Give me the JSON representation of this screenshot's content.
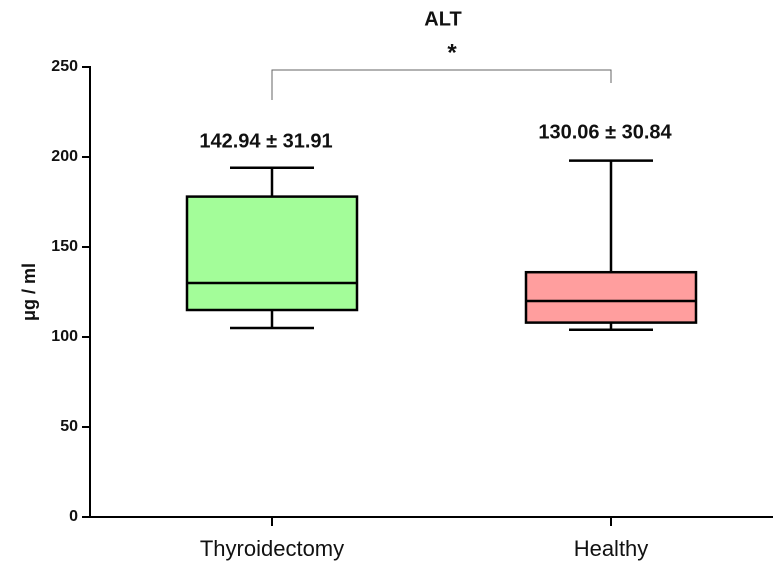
{
  "chart_data": {
    "type": "box",
    "title": "ALT",
    "ylabel": "μg / ml",
    "categories": [
      "Thyroidectomy",
      "Healthy"
    ],
    "boxes": [
      {
        "min": 105,
        "q1": 115,
        "median": 130,
        "q3": 178,
        "max": 194,
        "color": "#a3fd99"
      },
      {
        "min": 104,
        "q1": 108,
        "median": 120,
        "q3": 136,
        "max": 198,
        "color": "#ff9e9e"
      }
    ],
    "annotations": [
      "142.94 ± 31.91",
      "130.06 ± 30.84"
    ],
    "significance": "*",
    "ylim": [
      0,
      250
    ],
    "yticks": [
      0,
      50,
      100,
      150,
      200,
      250
    ],
    "grid": false
  }
}
